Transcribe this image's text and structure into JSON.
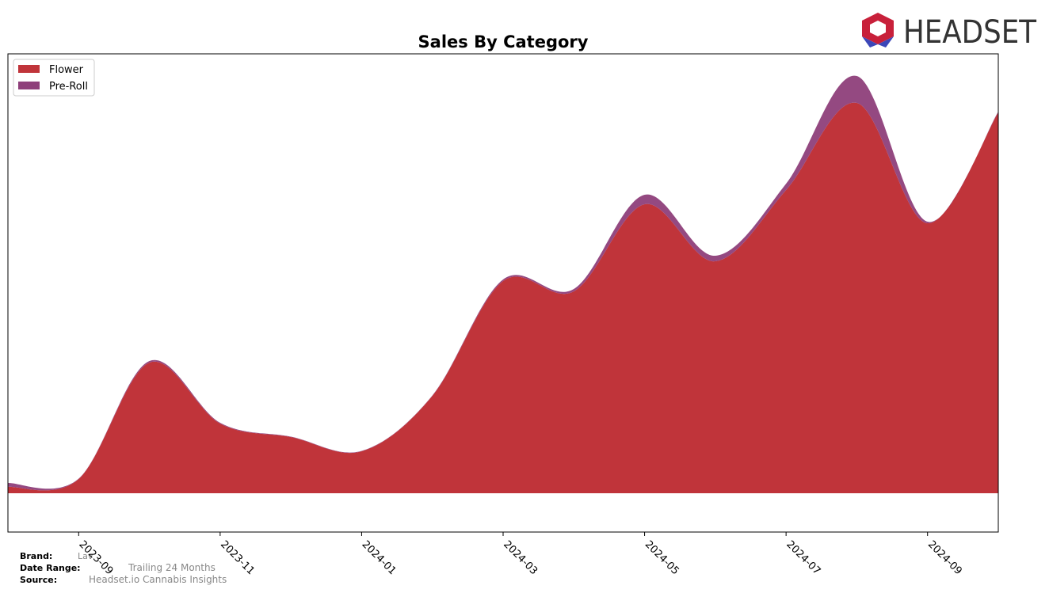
{
  "chart_data": {
    "type": "stacked-area",
    "title": "Sales By Category",
    "x": [
      "2023-08",
      "2023-09",
      "2023-10",
      "2023-11",
      "2023-12",
      "2024-01",
      "2024-02",
      "2024-03",
      "2024-04",
      "2024-05",
      "2024-06",
      "2024-07",
      "2024-08",
      "2024-09",
      "2024-10"
    ],
    "xticks": [
      "2023-09",
      "2023-11",
      "2024-01",
      "2024-03",
      "2024-05",
      "2024-07",
      "2024-09"
    ],
    "series": [
      {
        "name": "Flower",
        "color": "#c0343a",
        "values": [
          8,
          18,
          165,
          88,
          71,
          53,
          123,
          268,
          255,
          365,
          293,
          383,
          493,
          341,
          481
        ]
      },
      {
        "name": "Pre-Roll",
        "color": "#8e3f7a",
        "values": [
          5,
          0.5,
          2,
          1,
          0.5,
          0.5,
          0.5,
          2,
          3,
          12,
          7,
          8,
          34,
          2,
          1
        ]
      }
    ],
    "ylim": [
      -49,
      555
    ],
    "legend": "upper-left"
  },
  "logo": "HEADSET",
  "footer": {
    "brand_label": "Brand:",
    "brand": "Lav",
    "range_label": "Date Range:",
    "range": "Trailing 24 Months",
    "source_label": "Source:",
    "source": "Headset.io Cannabis Insights"
  }
}
